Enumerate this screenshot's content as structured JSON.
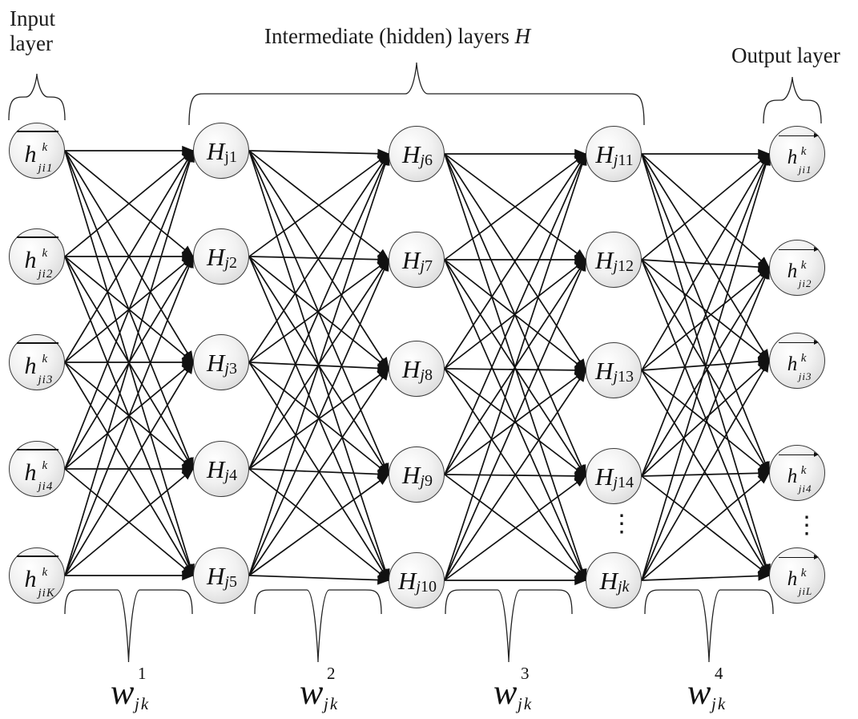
{
  "header": {
    "input_label_line1": "Input",
    "input_label_line2": "layer",
    "hidden_label": "Intermediate (hidden) layers",
    "hidden_symbol": "H",
    "output_label": "Output layer"
  },
  "input_layer": [
    {
      "base": "h",
      "sup": "k",
      "sub": "ji1"
    },
    {
      "base": "h",
      "sup": "k",
      "sub": "ji2"
    },
    {
      "base": "h",
      "sup": "k",
      "sub": "ji3"
    },
    {
      "base": "h",
      "sup": "k",
      "sub": "ji4"
    },
    {
      "base": "h",
      "sup": "k",
      "sub": "jiK"
    }
  ],
  "hidden_layers": [
    [
      {
        "name": "H",
        "sub_pre": "j",
        "sub_num": "1",
        "j_italic": false
      },
      {
        "name": "H",
        "sub_pre": "j",
        "sub_num": "2",
        "j_italic": true
      },
      {
        "name": "H",
        "sub_pre": "j",
        "sub_num": "3",
        "j_italic": true
      },
      {
        "name": "H",
        "sub_pre": "j",
        "sub_num": "4",
        "j_italic": true
      },
      {
        "name": "H",
        "sub_pre": "j",
        "sub_num": "5",
        "j_italic": true
      }
    ],
    [
      {
        "name": "H",
        "sub_pre": "j",
        "sub_num": "6",
        "j_italic": true
      },
      {
        "name": "H",
        "sub_pre": "j",
        "sub_num": "7",
        "j_italic": true
      },
      {
        "name": "H",
        "sub_pre": "j",
        "sub_num": "8",
        "j_italic": true
      },
      {
        "name": "H",
        "sub_pre": "j",
        "sub_num": "9",
        "j_italic": true
      },
      {
        "name": "H",
        "sub_pre": "j",
        "sub_num": "10",
        "j_italic": true
      }
    ],
    [
      {
        "name": "H",
        "sub_pre": "j",
        "sub_num": "11",
        "j_italic": true
      },
      {
        "name": "H",
        "sub_pre": "j",
        "sub_num": "12",
        "j_italic": true
      },
      {
        "name": "H",
        "sub_pre": "j",
        "sub_num": "13",
        "j_italic": true
      },
      {
        "name": "H",
        "sub_pre": "j",
        "sub_num": "14",
        "j_italic": true
      },
      {
        "name": "H",
        "sub_pre": "jk",
        "sub_num": "",
        "j_italic": true
      }
    ]
  ],
  "output_layer": [
    {
      "base": "h",
      "sup": "k",
      "sub": "ji1"
    },
    {
      "base": "h",
      "sup": "k",
      "sub": "ji2"
    },
    {
      "base": "h",
      "sup": "k",
      "sub": "ji3"
    },
    {
      "base": "h",
      "sup": "k",
      "sub": "ji4"
    },
    {
      "base": "h",
      "sup": "k",
      "sub": "jiL"
    }
  ],
  "ellipsis": "⋮",
  "weights": [
    {
      "symbol": "w",
      "sup": "1",
      "sub": "jk"
    },
    {
      "symbol": "w",
      "sup": "2",
      "sub": "jk"
    },
    {
      "symbol": "w",
      "sup": "3",
      "sub": "jk"
    },
    {
      "symbol": "w",
      "sup": "4",
      "sub": "jk"
    }
  ],
  "colors": {
    "line": "#111111",
    "node_border": "#3a3a3a",
    "node_fill": "#e6e6e6",
    "background": "#ffffff"
  }
}
